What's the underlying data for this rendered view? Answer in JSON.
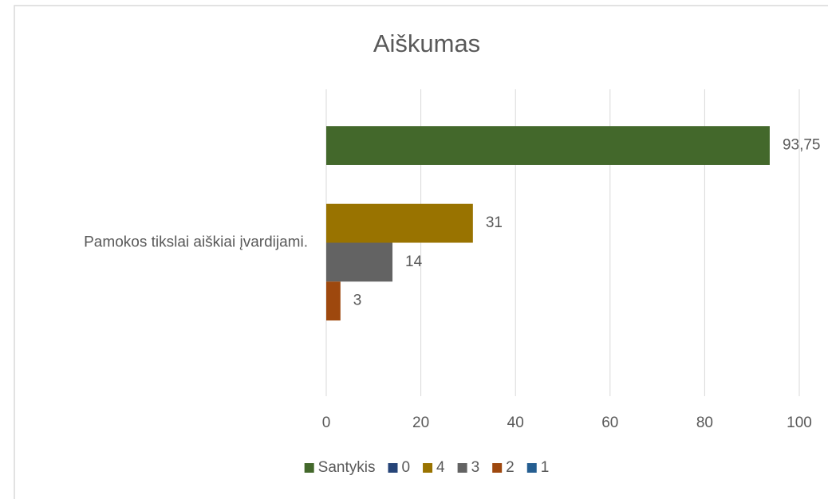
{
  "chart_data": {
    "type": "bar",
    "orientation": "horizontal",
    "title": "Aiškumas",
    "categories": [
      "Pamokos tikslai aiškiai įvardijami."
    ],
    "series": [
      {
        "name": "Santykis",
        "color": "#43682b",
        "values": [
          93.75
        ],
        "value_labels": [
          "93,75"
        ]
      },
      {
        "name": "0",
        "color": "#264478",
        "values": [
          null
        ]
      },
      {
        "name": "4",
        "color": "#997300",
        "values": [
          31
        ]
      },
      {
        "name": "3",
        "color": "#636363",
        "values": [
          14
        ]
      },
      {
        "name": "2",
        "color": "#9e480e",
        "values": [
          3
        ]
      },
      {
        "name": "1",
        "color": "#255e91",
        "values": [
          null
        ]
      }
    ],
    "xlim": [
      0,
      100
    ],
    "xticks": [
      0,
      20,
      40,
      60,
      80,
      100
    ],
    "grid": true,
    "legend": "bottom"
  }
}
